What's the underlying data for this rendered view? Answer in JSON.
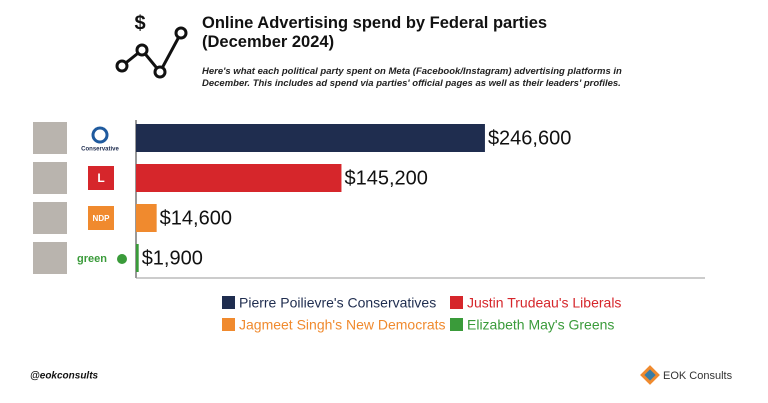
{
  "chart_data": {
    "type": "hbar",
    "title": "Online Advertising spend by Federal parties (December 2024)",
    "subtitle": "Here's what each political party spent on Meta (Facebook/Instagram) advertising platforms in December. This includes ad spend via parties' official pages as well as their leaders' profiles.",
    "icon_text": "$",
    "categories": [
      "Pierre Poilievre's Conservatives",
      "Justin Trudeau's Liberals",
      "Jagmeet Singh's New Democrats",
      "Elizabeth May's Greens"
    ],
    "logo_labels": [
      "Conservative",
      "L",
      "NDP",
      "green"
    ],
    "values": [
      246600,
      145200,
      14600,
      1900
    ],
    "value_labels": [
      "$246,600",
      "$145,200",
      "$14,600",
      "$1,900"
    ],
    "colors": [
      "#1f2d4f",
      "#d6262b",
      "#f08a2e",
      "#3a9b3a"
    ],
    "xlim": [
      0,
      400000
    ],
    "legend": "bottom",
    "footer_left": "@eokconsults",
    "footer_right": "EOK Consults"
  }
}
